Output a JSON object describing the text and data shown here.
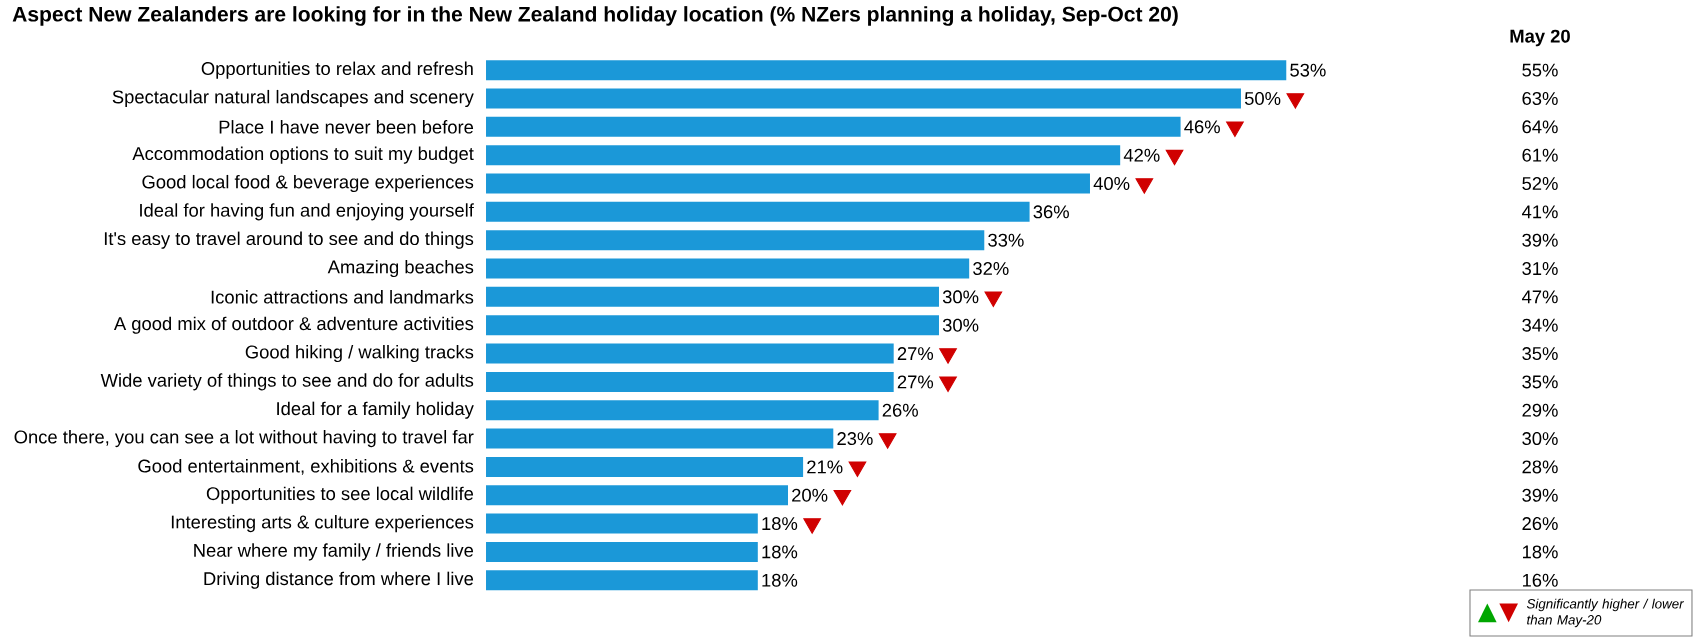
{
  "chart_data": {
    "type": "bar",
    "orientation": "horizontal",
    "title": "Aspect New Zealanders are looking for in the New Zealand holiday location (% NZers planning a holiday, Sep-Oct 20)",
    "categories": [
      "Opportunities to relax and refresh",
      "Spectacular natural landscapes and scenery",
      "Place I have never been before",
      "Accommodation options to suit my budget",
      "Good local food & beverage experiences",
      "Ideal for having fun and enjoying yourself",
      "It's easy to travel around to see and do things",
      "Amazing beaches",
      "Iconic attractions and landmarks",
      "A good mix of outdoor & adventure activities",
      "Good hiking / walking tracks",
      "Wide variety of things to see and do for adults",
      "Ideal for a family holiday",
      "Once there, you can see a lot without having to travel far",
      "Good entertainment, exhibitions & events",
      "Opportunities to see local wildlife",
      "Interesting arts & culture experiences",
      "Near where my family / friends live",
      "Driving distance from where I live"
    ],
    "series": [
      {
        "color": "#1b98d8",
        "values": [
          53,
          50,
          46,
          42,
          40,
          36,
          33,
          32,
          30,
          30,
          27,
          27,
          26,
          23,
          21,
          20,
          18,
          18,
          18
        ],
        "value_labels": [
          "53%",
          "50%",
          "46%",
          "42%",
          "40%",
          "36%",
          "33%",
          "32%",
          "30%",
          "30%",
          "27%",
          "27%",
          "26%",
          "23%",
          "21%",
          "20%",
          "18%",
          "18%",
          "18%"
        ]
      },
      {
        "type": "scatter",
        "marker": "triangle",
        "color": "#d00000",
        "values": [
          null,
          53.6,
          49.6,
          45.6,
          43.6,
          null,
          null,
          null,
          33.6,
          null,
          30.6,
          30.6,
          null,
          26.6,
          24.6,
          23.6,
          21.6,
          null,
          null
        ]
      }
    ],
    "annotations": [
      "May 20",
      "55%",
      "63%",
      "64%",
      "61%",
      "52%",
      "41%",
      "39%",
      "31%",
      "47%",
      "34%",
      "35%",
      "35%",
      "29%",
      "30%",
      "28%",
      "39%",
      "26%",
      "18%",
      "16%",
      "Significantly higher / lower than May-20"
    ]
  }
}
